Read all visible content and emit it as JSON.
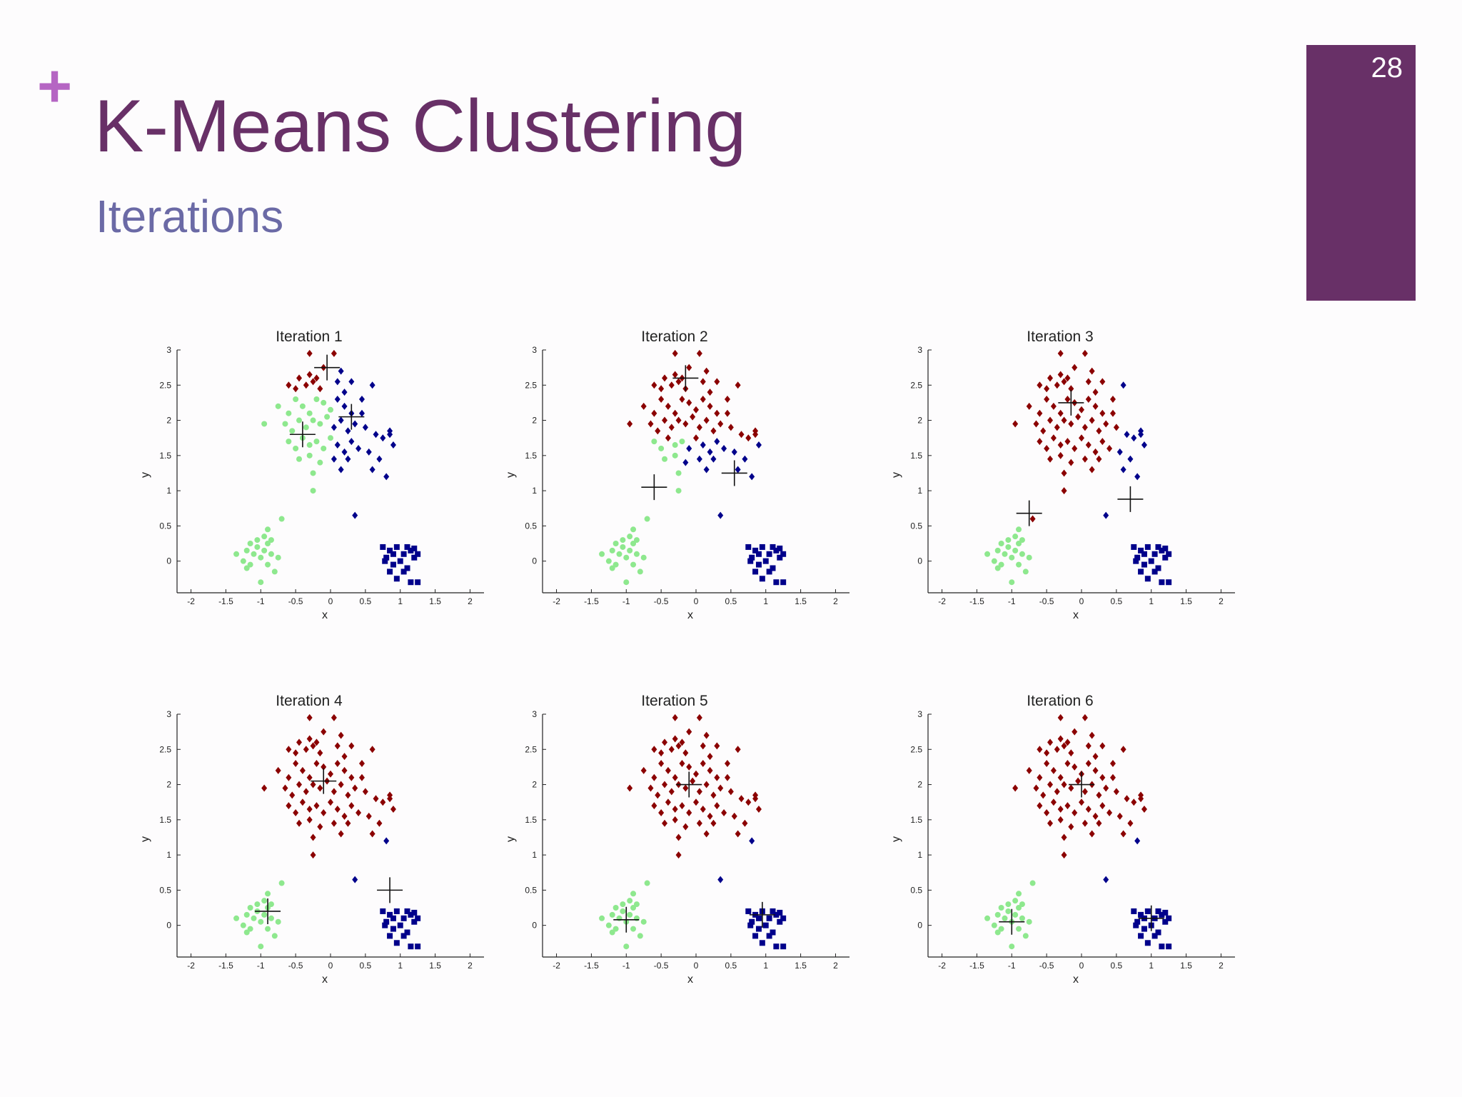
{
  "slide": {
    "title": "K-Means Clustering",
    "subtitle": "Iterations",
    "page_number": "28",
    "colors": {
      "title": "#683067",
      "subtitle": "#6b6aa6",
      "accent": "#b565c3",
      "page_box": "#683067"
    }
  },
  "chart_data": [
    {
      "type": "scatter",
      "title": "Iteration 1",
      "xlabel": "x",
      "ylabel": "y",
      "xlim": [
        -2.2,
        2.2
      ],
      "ylim": [
        -0.45,
        3.0
      ],
      "xticks": [
        "-2",
        "-1.5",
        "-1",
        "-0.5",
        "0",
        "0.5",
        "1",
        "1.5",
        "2"
      ],
      "yticks": [
        "0",
        "0.5",
        "1",
        "1.5",
        "2",
        "2.5",
        "3"
      ],
      "centroids": [
        [
          -0.05,
          2.75
        ],
        [
          0.3,
          2.05
        ],
        [
          -0.4,
          1.8
        ]
      ],
      "assignment": "iter1"
    },
    {
      "type": "scatter",
      "title": "Iteration 2",
      "xlabel": "x",
      "ylabel": "y",
      "xlim": [
        -2.2,
        2.2
      ],
      "ylim": [
        -0.45,
        3.0
      ],
      "xticks": [
        "-2",
        "-1.5",
        "-1",
        "-0.5",
        "0",
        "0.5",
        "1",
        "1.5",
        "2"
      ],
      "yticks": [
        "0",
        "0.5",
        "1",
        "1.5",
        "2",
        "2.5",
        "3"
      ],
      "centroids": [
        [
          -0.15,
          2.6
        ],
        [
          0.55,
          1.25
        ],
        [
          -0.6,
          1.05
        ]
      ],
      "assignment": "iter2"
    },
    {
      "type": "scatter",
      "title": "Iteration 3",
      "xlabel": "x",
      "ylabel": "y",
      "xlim": [
        -2.2,
        2.2
      ],
      "ylim": [
        -0.45,
        3.0
      ],
      "xticks": [
        "-2",
        "-1.5",
        "-1",
        "-0.5",
        "0",
        "0.5",
        "1",
        "1.5",
        "2"
      ],
      "yticks": [
        "0",
        "0.5",
        "1",
        "1.5",
        "2",
        "2.5",
        "3"
      ],
      "centroids": [
        [
          -0.15,
          2.25
        ],
        [
          0.7,
          0.88
        ],
        [
          -0.75,
          0.68
        ]
      ],
      "assignment": "iter3"
    },
    {
      "type": "scatter",
      "title": "Iteration 4",
      "xlabel": "x",
      "ylabel": "y",
      "xlim": [
        -2.2,
        2.2
      ],
      "ylim": [
        -0.45,
        3.0
      ],
      "xticks": [
        "-2",
        "-1.5",
        "-1",
        "-0.5",
        "0",
        "0.5",
        "1",
        "1.5",
        "2"
      ],
      "yticks": [
        "0",
        "0.5",
        "1",
        "1.5",
        "2",
        "2.5",
        "3"
      ],
      "centroids": [
        [
          -0.1,
          2.05
        ],
        [
          0.85,
          0.5
        ],
        [
          -0.9,
          0.2
        ]
      ],
      "assignment": "final"
    },
    {
      "type": "scatter",
      "title": "Iteration 5",
      "xlabel": "x",
      "ylabel": "y",
      "xlim": [
        -2.2,
        2.2
      ],
      "ylim": [
        -0.45,
        3.0
      ],
      "xticks": [
        "-2",
        "-1.5",
        "-1",
        "-0.5",
        "0",
        "0.5",
        "1",
        "1.5",
        "2"
      ],
      "yticks": [
        "0",
        "0.5",
        "1",
        "1.5",
        "2",
        "2.5",
        "3"
      ],
      "centroids": [
        [
          -0.1,
          2.0
        ],
        [
          0.95,
          0.15
        ],
        [
          -1.0,
          0.08
        ]
      ],
      "assignment": "final"
    },
    {
      "type": "scatter",
      "title": "Iteration 6",
      "xlabel": "x",
      "ylabel": "y",
      "xlim": [
        -2.2,
        2.2
      ],
      "ylim": [
        -0.45,
        3.0
      ],
      "xticks": [
        "-2",
        "-1.5",
        "-1",
        "-0.5",
        "0",
        "0.5",
        "1",
        "1.5",
        "2"
      ],
      "yticks": [
        "0",
        "0.5",
        "1",
        "1.5",
        "2",
        "2.5",
        "3"
      ],
      "centroids": [
        [
          0.0,
          2.0
        ],
        [
          1.0,
          0.1
        ],
        [
          -1.0,
          0.05
        ]
      ],
      "assignment": "final"
    }
  ],
  "points": {
    "cluster_colors": [
      "#8b0000",
      "#00008b",
      "#8ee88e"
    ],
    "top": [
      [
        -0.6,
        2.5
      ],
      [
        -0.5,
        2.45
      ],
      [
        -0.45,
        2.6
      ],
      [
        -0.35,
        2.5
      ],
      [
        -0.3,
        2.65
      ],
      [
        -0.25,
        2.55
      ],
      [
        -0.15,
        2.45
      ],
      [
        -0.1,
        2.75
      ],
      [
        0.05,
        2.95
      ],
      [
        -0.3,
        2.95
      ],
      [
        0.1,
        2.55
      ],
      [
        0.2,
        2.4
      ],
      [
        0.3,
        2.55
      ],
      [
        0.45,
        2.3
      ],
      [
        0.6,
        2.5
      ],
      [
        -0.75,
        2.2
      ],
      [
        -0.6,
        2.1
      ],
      [
        -0.5,
        2.3
      ],
      [
        -0.4,
        2.2
      ],
      [
        -0.3,
        2.1
      ],
      [
        -0.2,
        2.3
      ],
      [
        -0.1,
        2.25
      ],
      [
        0.0,
        2.15
      ],
      [
        0.1,
        2.3
      ],
      [
        0.2,
        2.2
      ],
      [
        0.3,
        2.1
      ],
      [
        -0.65,
        1.95
      ],
      [
        -0.55,
        1.85
      ],
      [
        -0.45,
        2.0
      ],
      [
        -0.35,
        1.9
      ],
      [
        -0.25,
        2.0
      ],
      [
        -0.15,
        1.95
      ],
      [
        -0.05,
        2.05
      ],
      [
        0.05,
        1.9
      ],
      [
        0.15,
        2.0
      ],
      [
        0.25,
        1.85
      ],
      [
        0.35,
        1.95
      ],
      [
        0.5,
        1.9
      ],
      [
        0.65,
        1.8
      ],
      [
        0.75,
        1.75
      ],
      [
        0.85,
        1.8
      ],
      [
        0.9,
        1.65
      ],
      [
        -0.95,
        1.95
      ],
      [
        -0.6,
        1.7
      ],
      [
        -0.5,
        1.6
      ],
      [
        -0.4,
        1.75
      ],
      [
        -0.3,
        1.65
      ],
      [
        -0.2,
        1.7
      ],
      [
        -0.1,
        1.6
      ],
      [
        0.0,
        1.75
      ],
      [
        0.1,
        1.65
      ],
      [
        0.2,
        1.55
      ],
      [
        0.3,
        1.7
      ],
      [
        0.4,
        1.6
      ],
      [
        0.55,
        1.55
      ],
      [
        0.7,
        1.45
      ],
      [
        -0.45,
        1.45
      ],
      [
        -0.3,
        1.5
      ],
      [
        -0.15,
        1.4
      ],
      [
        0.05,
        1.45
      ],
      [
        0.25,
        1.45
      ],
      [
        -0.25,
        1.25
      ],
      [
        0.15,
        1.3
      ],
      [
        0.6,
        1.3
      ],
      [
        -0.25,
        1.0
      ],
      [
        0.8,
        1.2
      ],
      [
        0.35,
        0.65
      ],
      [
        -0.7,
        0.6
      ],
      [
        0.85,
        1.85
      ],
      [
        0.45,
        2.1
      ],
      [
        -0.2,
        2.6
      ],
      [
        0.15,
        2.7
      ]
    ],
    "left": [
      [
        -1.35,
        0.1
      ],
      [
        -1.25,
        0.0
      ],
      [
        -1.2,
        0.15
      ],
      [
        -1.15,
        -0.05
      ],
      [
        -1.1,
        0.1
      ],
      [
        -1.05,
        0.2
      ],
      [
        -1.0,
        0.05
      ],
      [
        -0.95,
        0.15
      ],
      [
        -0.9,
        -0.05
      ],
      [
        -0.85,
        0.1
      ],
      [
        -0.95,
        0.35
      ],
      [
        -1.05,
        0.3
      ],
      [
        -1.15,
        0.25
      ],
      [
        -0.85,
        0.3
      ],
      [
        -0.75,
        0.05
      ],
      [
        -1.2,
        -0.1
      ],
      [
        -0.9,
        0.25
      ],
      [
        -0.8,
        -0.15
      ],
      [
        -1.0,
        -0.3
      ],
      [
        -0.9,
        0.45
      ]
    ],
    "right": [
      [
        0.75,
        0.2
      ],
      [
        0.85,
        0.15
      ],
      [
        0.95,
        0.2
      ],
      [
        1.05,
        0.1
      ],
      [
        1.15,
        0.15
      ],
      [
        1.25,
        0.1
      ],
      [
        0.8,
        0.05
      ],
      [
        0.9,
        -0.05
      ],
      [
        1.0,
        0.0
      ],
      [
        1.1,
        -0.1
      ],
      [
        1.2,
        0.05
      ],
      [
        0.85,
        -0.15
      ],
      [
        0.95,
        -0.25
      ],
      [
        1.05,
        -0.15
      ],
      [
        1.15,
        -0.3
      ],
      [
        0.9,
        0.1
      ],
      [
        1.1,
        0.2
      ],
      [
        1.25,
        -0.3
      ],
      [
        0.78,
        0.0
      ],
      [
        1.2,
        0.18
      ]
    ]
  }
}
